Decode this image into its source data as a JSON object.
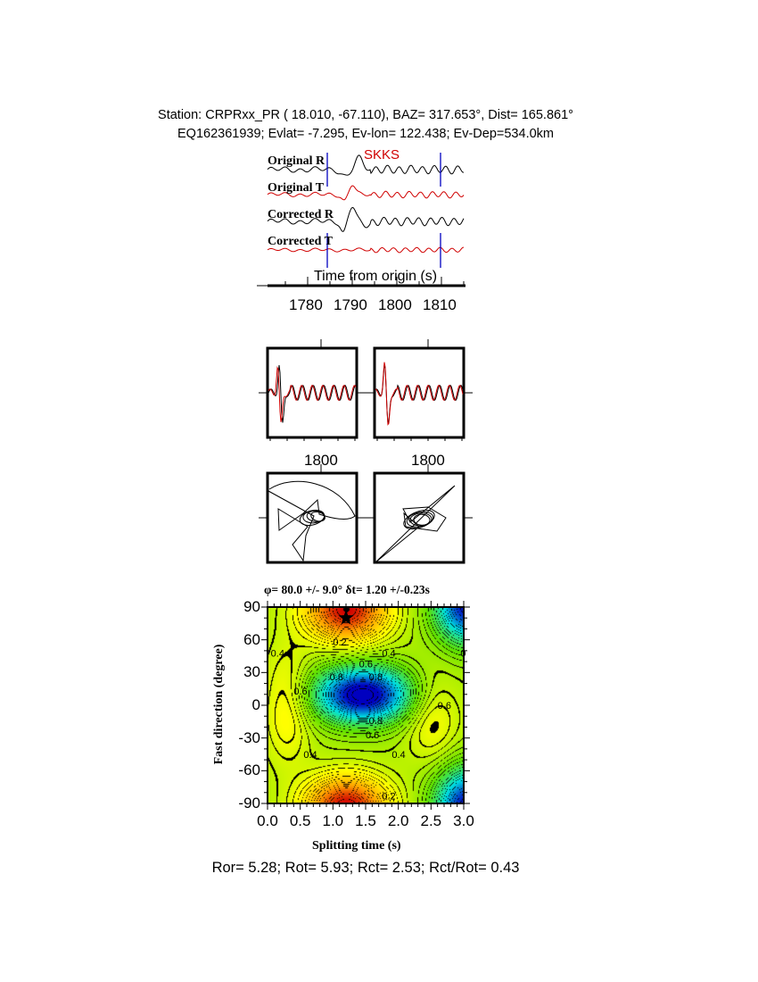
{
  "header": {
    "line1": "Station: CRPRxx_PR (  18.010,  -67.110), BAZ=  317.653°, Dist=  165.861°",
    "line2": "EQ162361939; Evlat=  -7.295, Ev-lon= 122.438; Ev-Dep=534.0km"
  },
  "chart_data": [
    {
      "type": "line",
      "panel": "waveforms",
      "traces": [
        {
          "label": "Original R",
          "color": "#000000"
        },
        {
          "label": "Original T",
          "color": "#d00000"
        },
        {
          "label": "Corrected R",
          "color": "#000000"
        },
        {
          "label": "Corrected T",
          "color": "#d00000"
        }
      ],
      "phase_label": "SKKS",
      "phase_color": "#d00000",
      "window_markers_s": [
        1784.4,
        1809.8
      ],
      "marker_color": "#0000c0",
      "xlabel": "Time from origin (s)",
      "xticks": [
        "1780",
        "1790",
        "1800",
        "1810"
      ],
      "xlim": [
        1771,
        1815
      ]
    },
    {
      "type": "line",
      "panel": "component-comparison",
      "panels": [
        {
          "xtick": "1800"
        },
        {
          "xtick": "1800"
        }
      ]
    },
    {
      "type": "line",
      "panel": "particle-motion",
      "panels": [
        "original",
        "corrected"
      ]
    },
    {
      "type": "heatmap",
      "title": "φ= 80.0 +/- 9.0° δt= 1.20 +/-0.23s",
      "xlabel": "Splitting time (s)",
      "ylabel": "Fast direction (degree)",
      "xlim": [
        0,
        3
      ],
      "ylim": [
        -90,
        90
      ],
      "xticks": [
        "0.0",
        "0.5",
        "1.0",
        "1.5",
        "2.0",
        "2.5",
        "3.0"
      ],
      "yticks": [
        "90",
        "60",
        "30",
        "0",
        "-30",
        "-60",
        "-90"
      ],
      "best_fit": {
        "dt": 1.2,
        "phi": 80.0
      },
      "contour_labels": [
        {
          "text": "0.2",
          "x": 1.0,
          "y": 58
        },
        {
          "text": "0.4",
          "x": 0.05,
          "y": 48
        },
        {
          "text": "0.4",
          "x": 1.75,
          "y": 48
        },
        {
          "text": "0",
          "x": 2.95,
          "y": 48
        },
        {
          "text": "0.6",
          "x": 1.4,
          "y": 38
        },
        {
          "text": "0.8",
          "x": 0.95,
          "y": 26
        },
        {
          "text": "0.8",
          "x": 1.55,
          "y": 26
        },
        {
          "text": "0.6",
          "x": 0.4,
          "y": 13
        },
        {
          "text": "0.6",
          "x": 2.6,
          "y": 0
        },
        {
          "text": "0.8",
          "x": 1.55,
          "y": -14
        },
        {
          "text": "0.6",
          "x": 1.5,
          "y": -27
        },
        {
          "text": "0.4",
          "x": 0.55,
          "y": -45
        },
        {
          "text": "0.4",
          "x": 1.9,
          "y": -45
        },
        {
          "text": "0.2",
          "x": 1.75,
          "y": -83
        }
      ],
      "colormap": [
        "#d00000",
        "#ffa000",
        "#ffff00",
        "#60e000",
        "#00e0e0",
        "#0000c0"
      ]
    }
  ],
  "footer": {
    "stats": "Ror= 5.28; Rot= 5.93; Rct= 2.53; Rct/Rot= 0.43"
  }
}
